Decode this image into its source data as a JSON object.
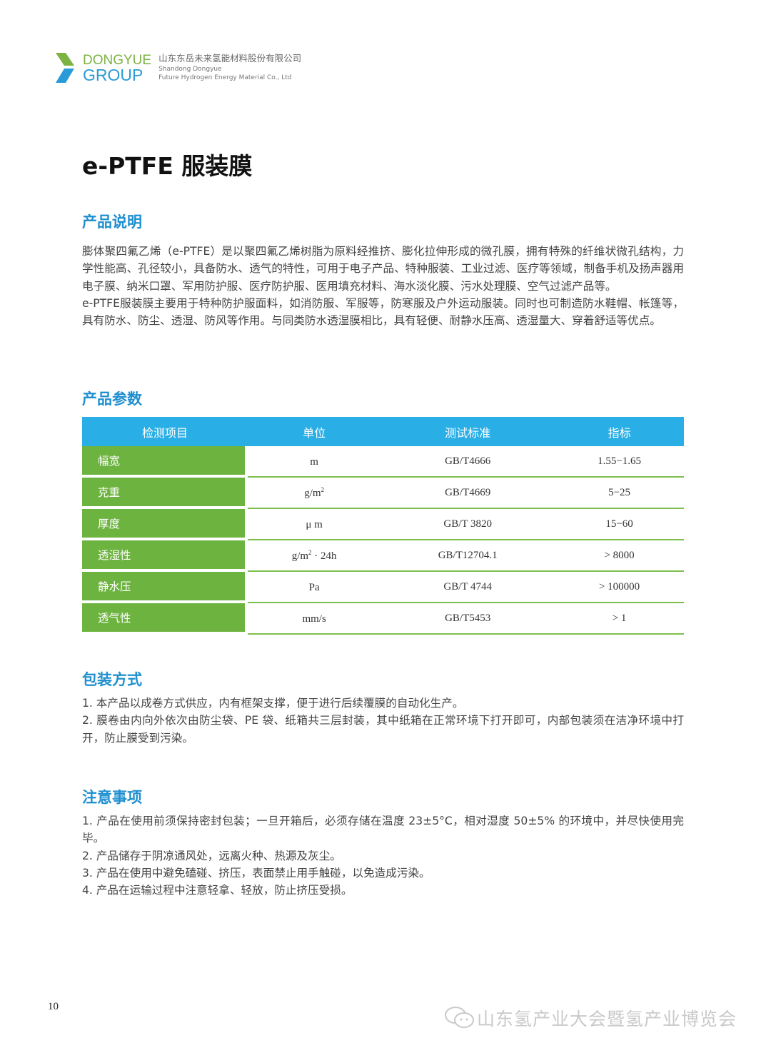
{
  "header": {
    "logo_en_line1": "DONGYUE",
    "logo_en_line2": "GROUP",
    "company_cn": "山东东岳未来氢能材料股份有限公司",
    "company_en_line1": "Shandong Dongyue",
    "company_en_line2": "Future Hydrogen Energy Material Co., Ltd"
  },
  "title": "e-PTFE 服装膜",
  "sections": {
    "description": {
      "heading": "产品说明",
      "paragraphs": [
        "膨体聚四氟乙烯（e-PTFE）是以聚四氟乙烯树脂为原料经推挤、膨化拉伸形成的微孔膜，拥有特殊的纤维状微孔结构，力学性能高、孔径较小，具备防水、透气的特性，可用于电子产品、特种服装、工业过滤、医疗等领域，制备手机及扬声器用电子膜、纳米口罩、军用防护服、医疗防护服、医用填充材料、海水淡化膜、污水处理膜、空气过滤产品等。",
        "e-PTFE服装膜主要用于特种防护服面料，如消防服、军服等，防寒服及户外运动服装。同时也可制造防水鞋帽、帐篷等，具有防水、防尘、透湿、防风等作用。与同类防水透湿膜相比，具有轻便、耐静水压高、透湿量大、穿着舒适等优点。"
      ]
    },
    "parameters": {
      "heading": "产品参数",
      "columns": [
        "检测项目",
        "单位",
        "测试标准",
        "指标"
      ],
      "rows": [
        {
          "item": "幅宽",
          "unit": "m",
          "sup": "",
          "unit_suffix": "",
          "standard": "GB/T4666",
          "value": "1.55−1.65"
        },
        {
          "item": "克重",
          "unit": "g/m",
          "sup": "2",
          "unit_suffix": "",
          "standard": "GB/T4669",
          "value": "5−25"
        },
        {
          "item": "厚度",
          "unit": "μ m",
          "sup": "",
          "unit_suffix": "",
          "standard": "GB/T 3820",
          "value": "15−60"
        },
        {
          "item": "透湿性",
          "unit": "g/m",
          "sup": "2",
          "unit_suffix": " · 24h",
          "standard": "GB/T12704.1",
          "value": "> 8000"
        },
        {
          "item": "静水压",
          "unit": "Pa",
          "sup": "",
          "unit_suffix": "",
          "standard": "GB/T 4744",
          "value": "> 100000"
        },
        {
          "item": "透气性",
          "unit": "mm/s",
          "sup": "",
          "unit_suffix": "",
          "standard": "GB/T5453",
          "value": "> 1"
        }
      ]
    },
    "packaging": {
      "heading": "包装方式",
      "items": [
        "1. 本产品以成卷方式供应，内有框架支撑，便于进行后续覆膜的自动化生产。",
        "2. 膜卷由内向外依次由防尘袋、PE 袋、纸箱共三层封装，其中纸箱在正常环境下打开即可，内部包装须在洁净环境中打开，防止膜受到污染。"
      ]
    },
    "notes": {
      "heading": "注意事项",
      "items": [
        "1. 产品在使用前须保持密封包装；一旦开箱后，必须存储在温度 23±5°C，相对湿度 50±5% 的环境中，并尽快使用完毕。",
        "2. 产品储存于阴凉通风处，远离火种、热源及灰尘。",
        "3. 产品在使用中避免磕碰、挤压，表面禁止用手触碰，以免造成污染。",
        "4. 产品在运输过程中注意轻拿、轻放，防止挤压受损。"
      ]
    }
  },
  "footer": {
    "page_number": "10",
    "watermark": "山东氢产业大会暨氢产业博览会",
    "watermark_icon": "wechat-icon"
  },
  "colors": {
    "heading_blue": "#1f8fcf",
    "table_header": "#29aee6",
    "table_green": "#6db33f"
  }
}
